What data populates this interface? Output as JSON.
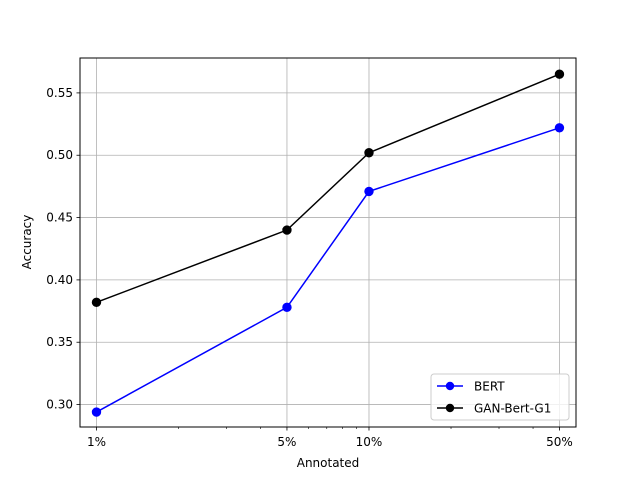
{
  "chart_data": {
    "type": "line",
    "title": "",
    "xlabel": "Annotated",
    "ylabel": "Accuracy",
    "x_scale": "log",
    "x": [
      1,
      5,
      10,
      50
    ],
    "x_tick_labels": [
      "1%",
      "5%",
      "10%",
      "50%"
    ],
    "y_ticks": [
      0.3,
      0.35,
      0.4,
      0.45,
      0.5,
      0.55
    ],
    "y_tick_labels": [
      "0.30",
      "0.35",
      "0.40",
      "0.45",
      "0.50",
      "0.55"
    ],
    "ylim": [
      0.282,
      0.578
    ],
    "grid": true,
    "legend_position": "lower right",
    "series": [
      {
        "name": "BERT",
        "color": "#0000ff",
        "marker": "circle",
        "values": [
          0.294,
          0.378,
          0.471,
          0.522
        ]
      },
      {
        "name": "GAN-Bert-G1",
        "color": "#000000",
        "marker": "circle",
        "values": [
          0.382,
          0.44,
          0.502,
          0.565
        ]
      }
    ]
  }
}
